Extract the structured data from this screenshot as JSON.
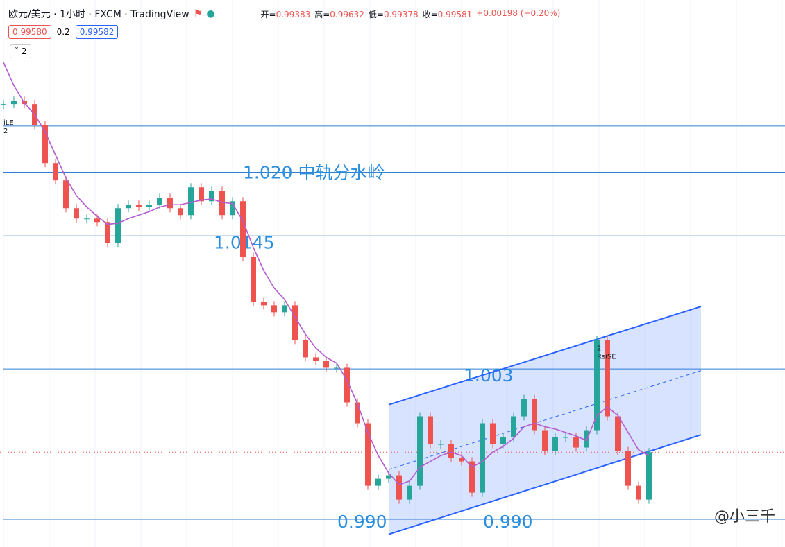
{
  "header": {
    "symbol": "欧元/美元 · 1小时 · FXCM · TradingView",
    "ohlc": [
      {
        "label": "开=",
        "value": "0.99383"
      },
      {
        "label": "高=",
        "value": "0.99632"
      },
      {
        "label": "低=",
        "value": "0.99378"
      },
      {
        "label": "收=",
        "value": "0.99581"
      }
    ],
    "change": "+0.00198 (+0.20%)",
    "bid": "0.99580",
    "spread": "0.2",
    "ask": "0.99582",
    "indicator": "2"
  },
  "chart_data": {
    "type": "candlestick",
    "ylim": [
      0.9876,
      1.0349
    ],
    "close": [
      1.0259,
      1.0262,
      1.0259,
      1.0241,
      1.0208,
      1.0193,
      1.0169,
      1.016,
      1.016,
      1.0157,
      1.0139,
      1.0169,
      1.0172,
      1.017,
      1.0172,
      1.0178,
      1.0169,
      1.0163,
      1.0187,
      1.0175,
      1.0184,
      1.0163,
      1.0175,
      1.0127,
      1.0088,
      1.0085,
      1.0079,
      1.0085,
      1.0055,
      1.004,
      1.0037,
      1.0031,
      1.0031,
      1.0001,
      0.9983,
      0.9929,
      0.9935,
      0.9938,
      0.9917,
      0.9929,
      0.9989,
      0.9965,
      0.9965,
      0.9953,
      0.995,
      0.9923,
      0.9983,
      0.9965,
      0.9971,
      0.9989,
      1.0004,
      0.9977,
      0.9959,
      0.9971,
      0.9971,
      0.9962,
      0.9977,
      1.0055,
      0.9989,
      0.9959,
      0.9929,
      0.9917,
      0.9958
    ],
    "ma": [
      1.0295,
      1.0275,
      1.026,
      1.025,
      1.0235,
      1.0215,
      1.0195,
      1.018,
      1.017,
      1.0162,
      1.0155,
      1.0156,
      1.016,
      1.0163,
      1.0166,
      1.017,
      1.0172,
      1.0172,
      1.0174,
      1.0176,
      1.0177,
      1.0174,
      1.0173,
      1.0158,
      1.0135,
      1.0115,
      1.01,
      1.009,
      1.0075,
      1.006,
      1.0048,
      1.004,
      1.0035,
      1.002,
      1.0,
      0.9975,
      0.9955,
      0.994,
      0.993,
      0.9933,
      0.9945,
      0.995,
      0.9955,
      0.9958,
      0.9955,
      0.9945,
      0.995,
      0.9958,
      0.9963,
      0.997,
      0.998,
      0.9983,
      0.998,
      0.9978,
      0.9975,
      0.9972,
      0.9968,
      0.999,
      0.9997,
      0.999,
      0.9975,
      0.996,
      0.9955
    ],
    "levels": [
      {
        "value": 1.024
      },
      {
        "value": 1.02,
        "label": "1.020 中轨分水岭"
      },
      {
        "value": 1.0145,
        "label": "1.0145"
      },
      {
        "value": 1.003,
        "label": "1.003"
      },
      {
        "value": 0.99,
        "labels": [
          "0.990",
          "0.990"
        ]
      }
    ],
    "channel": {
      "start": 37,
      "end": 67,
      "lower": [
        0.9887,
        0.9973
      ],
      "upper": [
        0.9999,
        1.0084
      ]
    },
    "markers": [
      {
        "index": 0,
        "texts": [
          "iLE",
          "2"
        ]
      },
      {
        "index": 57,
        "texts": [
          "2",
          "RsiSE"
        ]
      }
    ],
    "watermark": "@小三千"
  }
}
